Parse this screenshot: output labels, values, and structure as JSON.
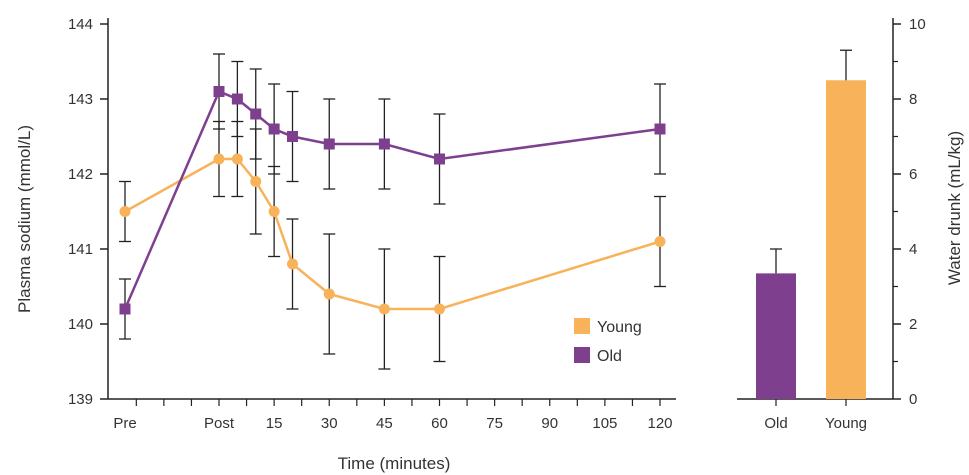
{
  "colors": {
    "young": "#F7B25A",
    "old": "#7D3F8E",
    "axis": "#222222",
    "error_bar": "#222222"
  },
  "chart_data": [
    {
      "type": "line",
      "ylabel": "Plasma sodium (mmol/L)",
      "xlabel": "Time (minutes)",
      "ylim": [
        139,
        144
      ],
      "y_ticks": [
        "139",
        "140",
        "141",
        "142",
        "143",
        "144"
      ],
      "x_ticks": [
        "Pre",
        "Post",
        "15",
        "30",
        "45",
        "60",
        "75",
        "90",
        "105",
        "120"
      ],
      "legend": {
        "placement": "bottom-right"
      },
      "grid": false,
      "series": [
        {
          "name": "Young",
          "color_key": "young",
          "marker": "circle",
          "points": [
            {
              "x": "Pre",
              "y": 141.5,
              "err": 0.4
            },
            {
              "x": "Post",
              "y": 142.2,
              "err": 0.5
            },
            {
              "x": 5,
              "y": 142.2,
              "err": 0.5
            },
            {
              "x": 10,
              "y": 141.9,
              "err": 0.7
            },
            {
              "x": 15,
              "y": 141.5,
              "err": 0.6
            },
            {
              "x": 20,
              "y": 140.8,
              "err": 0.6
            },
            {
              "x": 30,
              "y": 140.4,
              "err": 0.8
            },
            {
              "x": 45,
              "y": 140.2,
              "err": 0.8
            },
            {
              "x": 60,
              "y": 140.2,
              "err": 0.7
            },
            {
              "x": 120,
              "y": 141.1,
              "err": 0.6
            }
          ]
        },
        {
          "name": "Old",
          "color_key": "old",
          "marker": "square",
          "points": [
            {
              "x": "Pre",
              "y": 140.2,
              "err": 0.4
            },
            {
              "x": "Post",
              "y": 143.1,
              "err": 0.5
            },
            {
              "x": 5,
              "y": 143.0,
              "err": 0.5
            },
            {
              "x": 10,
              "y": 142.8,
              "err": 0.6
            },
            {
              "x": 15,
              "y": 142.6,
              "err": 0.6
            },
            {
              "x": 20,
              "y": 142.5,
              "err": 0.6
            },
            {
              "x": 30,
              "y": 142.4,
              "err": 0.6
            },
            {
              "x": 45,
              "y": 142.4,
              "err": 0.6
            },
            {
              "x": 60,
              "y": 142.2,
              "err": 0.6
            },
            {
              "x": 120,
              "y": 142.6,
              "err": 0.6
            }
          ]
        }
      ]
    },
    {
      "type": "bar",
      "ylabel": "Water drunk (mL/kg)",
      "ylim": [
        0,
        10
      ],
      "y_ticks": [
        "0",
        "2",
        "4",
        "6",
        "8",
        "10"
      ],
      "categories": [
        "Old",
        "Young"
      ],
      "values": [
        3.35,
        8.5
      ],
      "errors": [
        0.65,
        0.8
      ],
      "bar_color_keys": [
        "old",
        "young"
      ]
    }
  ]
}
